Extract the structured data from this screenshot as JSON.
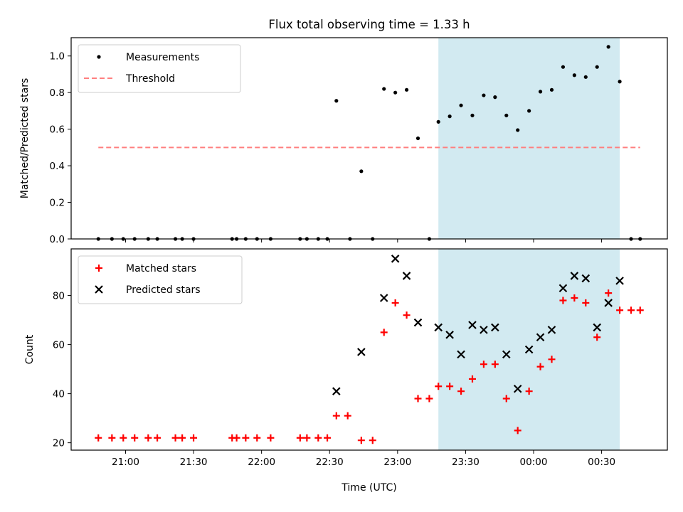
{
  "chart_data": {
    "type": "scatter",
    "title": "Flux total observing time = 1.33 h",
    "xlabel": "Time (UTC)",
    "x_tick_labels": [
      "21:00",
      "21:30",
      "22:00",
      "22:30",
      "23:00",
      "23:30",
      "00:00",
      "00:30"
    ],
    "highlight_span": {
      "start": "23:18",
      "end": "00:38",
      "color": "#add8e6"
    },
    "panels": [
      {
        "ylabel": "Matched/Predicted stars",
        "ylim": [
          0,
          1.1
        ],
        "y_ticks": [
          "0.0",
          "0.2",
          "0.4",
          "0.6",
          "0.8",
          "1.0"
        ],
        "legend_position": "upper left",
        "series": [
          {
            "name": "Measurements",
            "marker": "dot",
            "color": "#000000",
            "points": [
              [
                "20:48",
                0.0
              ],
              [
                "20:54",
                0.0
              ],
              [
                "20:59",
                0.0
              ],
              [
                "21:04",
                0.0
              ],
              [
                "21:10",
                0.0
              ],
              [
                "21:14",
                0.0
              ],
              [
                "21:22",
                0.0
              ],
              [
                "21:25",
                0.0
              ],
              [
                "21:30",
                0.0
              ],
              [
                "21:47",
                0.0
              ],
              [
                "21:49",
                0.0
              ],
              [
                "21:53",
                0.0
              ],
              [
                "21:58",
                0.0
              ],
              [
                "22:04",
                0.0
              ],
              [
                "22:17",
                0.0
              ],
              [
                "22:20",
                0.0
              ],
              [
                "22:25",
                0.0
              ],
              [
                "22:29",
                0.0
              ],
              [
                "22:33",
                0.755
              ],
              [
                "22:39",
                0.0
              ],
              [
                "22:44",
                0.37
              ],
              [
                "22:49",
                0.0
              ],
              [
                "22:54",
                0.82
              ],
              [
                "22:59",
                0.8
              ],
              [
                "23:04",
                0.815
              ],
              [
                "23:09",
                0.55
              ],
              [
                "23:14",
                0.0
              ],
              [
                "23:18",
                0.64
              ],
              [
                "23:23",
                0.67
              ],
              [
                "23:28",
                0.73
              ],
              [
                "23:33",
                0.675
              ],
              [
                "23:38",
                0.785
              ],
              [
                "23:43",
                0.775
              ],
              [
                "23:48",
                0.675
              ],
              [
                "23:53",
                0.595
              ],
              [
                "23:58",
                0.7
              ],
              [
                "00:03",
                0.805
              ],
              [
                "00:08",
                0.815
              ],
              [
                "00:13",
                0.94
              ],
              [
                "00:18",
                0.895
              ],
              [
                "00:23",
                0.885
              ],
              [
                "00:28",
                0.94
              ],
              [
                "00:33",
                1.05
              ],
              [
                "00:38",
                0.86
              ],
              [
                "00:43",
                0.0
              ],
              [
                "00:47",
                0.0
              ]
            ]
          },
          {
            "name": "Threshold",
            "marker": "dashed-line",
            "color": "#ff7f7f",
            "points": [
              [
                "20:48",
                0.5
              ],
              [
                "00:47",
                0.5
              ]
            ]
          }
        ]
      },
      {
        "ylabel": "Count",
        "ylim": [
          17,
          99
        ],
        "y_ticks": [
          "20",
          "40",
          "60",
          "80"
        ],
        "legend_position": "upper left",
        "series": [
          {
            "name": "Matched stars",
            "marker": "plus",
            "color": "#ff0000",
            "points": [
              [
                "20:48",
                22
              ],
              [
                "20:54",
                22
              ],
              [
                "20:59",
                22
              ],
              [
                "21:04",
                22
              ],
              [
                "21:10",
                22
              ],
              [
                "21:14",
                22
              ],
              [
                "21:22",
                22
              ],
              [
                "21:25",
                22
              ],
              [
                "21:30",
                22
              ],
              [
                "21:47",
                22
              ],
              [
                "21:49",
                22
              ],
              [
                "21:53",
                22
              ],
              [
                "21:58",
                22
              ],
              [
                "22:04",
                22
              ],
              [
                "22:17",
                22
              ],
              [
                "22:20",
                22
              ],
              [
                "22:25",
                22
              ],
              [
                "22:29",
                22
              ],
              [
                "22:33",
                31
              ],
              [
                "22:38",
                31
              ],
              [
                "22:44",
                21
              ],
              [
                "22:49",
                21
              ],
              [
                "22:54",
                65
              ],
              [
                "22:59",
                77
              ],
              [
                "23:04",
                72
              ],
              [
                "23:09",
                38
              ],
              [
                "23:14",
                38
              ],
              [
                "23:18",
                43
              ],
              [
                "23:23",
                43
              ],
              [
                "23:28",
                41
              ],
              [
                "23:33",
                46
              ],
              [
                "23:38",
                52
              ],
              [
                "23:43",
                52
              ],
              [
                "23:48",
                38
              ],
              [
                "23:53",
                25
              ],
              [
                "23:58",
                41
              ],
              [
                "00:03",
                51
              ],
              [
                "00:08",
                54
              ],
              [
                "00:13",
                78
              ],
              [
                "00:18",
                79
              ],
              [
                "00:23",
                77
              ],
              [
                "00:28",
                63
              ],
              [
                "00:33",
                81
              ],
              [
                "00:38",
                74
              ],
              [
                "00:43",
                74
              ],
              [
                "00:47",
                74
              ]
            ]
          },
          {
            "name": "Predicted stars",
            "marker": "x",
            "color": "#000000",
            "points": [
              [
                "22:33",
                41
              ],
              [
                "22:44",
                57
              ],
              [
                "22:54",
                79
              ],
              [
                "22:59",
                95
              ],
              [
                "23:04",
                88
              ],
              [
                "23:09",
                69
              ],
              [
                "23:18",
                67
              ],
              [
                "23:23",
                64
              ],
              [
                "23:28",
                56
              ],
              [
                "23:33",
                68
              ],
              [
                "23:38",
                66
              ],
              [
                "23:43",
                67
              ],
              [
                "23:48",
                56
              ],
              [
                "23:53",
                42
              ],
              [
                "23:58",
                58
              ],
              [
                "00:03",
                63
              ],
              [
                "00:08",
                66
              ],
              [
                "00:13",
                83
              ],
              [
                "00:18",
                88
              ],
              [
                "00:23",
                87
              ],
              [
                "00:28",
                67
              ],
              [
                "00:33",
                77
              ],
              [
                "00:38",
                86
              ]
            ]
          }
        ]
      }
    ]
  }
}
